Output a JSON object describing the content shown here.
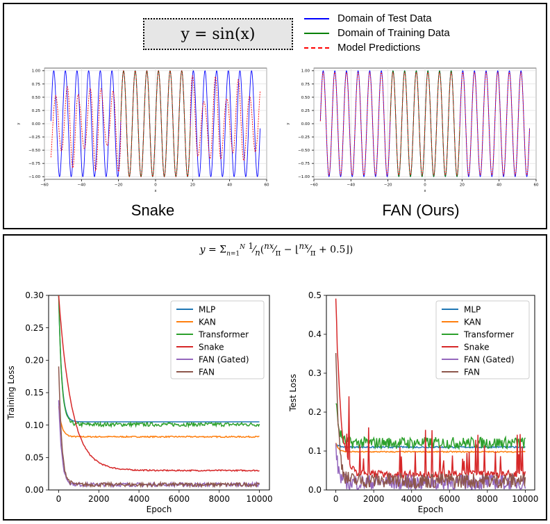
{
  "top": {
    "formula": "y = sin(x)",
    "legend": [
      {
        "label": "Domain of Test Data",
        "color": "#0000ff",
        "style": "solid"
      },
      {
        "label": "Domain of Training Data",
        "color": "#008000",
        "style": "solid"
      },
      {
        "label": "Model Predictions",
        "color": "#ff0000",
        "style": "dashed"
      }
    ],
    "captions": [
      "Snake",
      "FAN (Ours)"
    ]
  },
  "bottom": {
    "formula": "y = Σ_{n=1}^{N} (1/n)(nx/π − ⌊nx/π + 0.5⌋)"
  },
  "chart_data": [
    {
      "type": "line",
      "id": "snake-sin",
      "xlabel": "x",
      "ylabel": "y",
      "xlim": [
        -60,
        60
      ],
      "ylim": [
        -1.05,
        1.05
      ],
      "xticks": [
        "−60",
        "−40",
        "−20",
        "0",
        "20",
        "40",
        "60"
      ],
      "yticks": [
        "1.00",
        "0.75",
        "0.50",
        "0.25",
        "0.00",
        "−0.25",
        "−0.50",
        "−0.75",
        "−1.00"
      ],
      "grid": true,
      "series": [
        {
          "name": "Domain of Test Data",
          "function": "sin(x)",
          "domain": [
            -56.5,
            56.5
          ],
          "color": "#0000ff"
        },
        {
          "name": "Domain of Training Data",
          "function": "sin(x)",
          "domain": [
            -18.8,
            18.8
          ],
          "color": "#008000"
        },
        {
          "name": "Model Predictions",
          "description": "matches sin(x) on training domain; outside it the prediction oscillates with reduced amplitude about 0.4–0.9",
          "domain": [
            -56.5,
            56.5
          ],
          "color": "#ff0000"
        }
      ]
    },
    {
      "type": "line",
      "id": "fan-sin",
      "xlabel": "x",
      "ylabel": "y",
      "xlim": [
        -60,
        60
      ],
      "ylim": [
        -1.05,
        1.05
      ],
      "xticks": [
        "−60",
        "−40",
        "−20",
        "0",
        "20",
        "40",
        "60"
      ],
      "yticks": [
        "1.00",
        "0.75",
        "0.50",
        "0.25",
        "0.00",
        "−0.25",
        "−0.50",
        "−0.75",
        "−1.00"
      ],
      "grid": true,
      "series": [
        {
          "name": "Domain of Test Data",
          "function": "sin(x)",
          "domain": [
            -56.5,
            56.5
          ],
          "color": "#0000ff"
        },
        {
          "name": "Domain of Training Data",
          "function": "sin(x)",
          "domain": [
            -18.8,
            18.8
          ],
          "color": "#008000"
        },
        {
          "name": "Model Predictions",
          "description": "closely matches sin(x) over the full domain",
          "domain": [
            -56.5,
            56.5
          ],
          "color": "#ff0000"
        }
      ]
    },
    {
      "type": "line",
      "id": "training-loss",
      "xlabel": "Epoch",
      "ylabel": "Training Loss",
      "xlim": [
        -500,
        10500
      ],
      "ylim": [
        0,
        0.3
      ],
      "xticks": [
        "0",
        "2000",
        "4000",
        "6000",
        "8000",
        "10000"
      ],
      "yticks": [
        "0.00",
        "0.05",
        "0.10",
        "0.15",
        "0.20",
        "0.25",
        "0.30"
      ],
      "legend_position": "top-right",
      "series": [
        {
          "name": "MLP",
          "color": "#1f77b4",
          "start": 0.3,
          "final": 0.105
        },
        {
          "name": "KAN",
          "color": "#ff7f0e",
          "start": 0.13,
          "final": 0.082
        },
        {
          "name": "Transformer",
          "color": "#2ca02c",
          "start": 0.3,
          "final": 0.101
        },
        {
          "name": "Snake",
          "color": "#d62728",
          "start": 0.3,
          "final": 0.03
        },
        {
          "name": "FAN (Gated)",
          "color": "#9467bd",
          "start": 0.14,
          "final": 0.007
        },
        {
          "name": "FAN",
          "color": "#8c564b",
          "start": 0.19,
          "final": 0.007
        }
      ]
    },
    {
      "type": "line",
      "id": "test-loss",
      "xlabel": "Epoch",
      "ylabel": "Test Loss",
      "xlim": [
        -500,
        10500
      ],
      "ylim": [
        0,
        0.5
      ],
      "xticks": [
        "0",
        "2000",
        "4000",
        "6000",
        "8000",
        "10000"
      ],
      "yticks": [
        "0.0",
        "0.1",
        "0.2",
        "0.3",
        "0.4",
        "0.5"
      ],
      "legend_position": "top-right",
      "series": [
        {
          "name": "MLP",
          "color": "#1f77b4",
          "start": 0.12,
          "final": 0.11
        },
        {
          "name": "KAN",
          "color": "#ff7f0e",
          "start": 0.12,
          "final": 0.098
        },
        {
          "name": "Transformer",
          "color": "#2ca02c",
          "start": 0.23,
          "final": 0.115
        },
        {
          "name": "Snake",
          "color": "#d62728",
          "start": 0.5,
          "final": 0.05
        },
        {
          "name": "FAN (Gated)",
          "color": "#9467bd",
          "start": 0.1,
          "final": 0.015
        },
        {
          "name": "FAN",
          "color": "#8c564b",
          "start": 0.36,
          "final": 0.02
        }
      ]
    }
  ]
}
